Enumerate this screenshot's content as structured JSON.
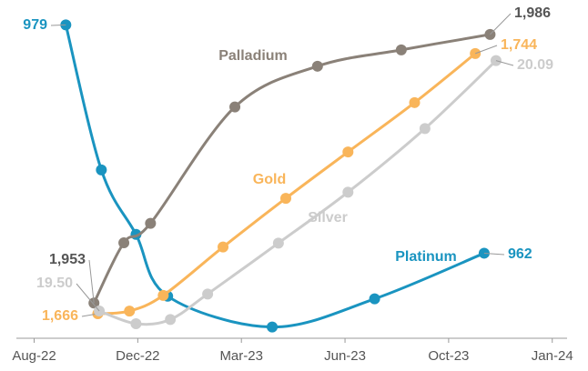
{
  "chart_data": {
    "type": "line",
    "xlim": [
      -0.6,
      18
    ],
    "xticks": [
      {
        "value": 0,
        "label": "Aug-22"
      },
      {
        "value": 3.5,
        "label": "Dec-22"
      },
      {
        "value": 7,
        "label": "Mar-23"
      },
      {
        "value": 10.5,
        "label": "Jun-23"
      },
      {
        "value": 14,
        "label": "Oct-23"
      },
      {
        "value": 17.5,
        "label": "Jan-24"
      }
    ],
    "series": [
      {
        "name": "Platinum",
        "color": "#1a94c0",
        "ylim": [
          955.8,
          979.5
        ],
        "x": [
          1.07,
          2.27,
          3.44,
          4.51,
          8.04,
          11.5,
          15.2
        ],
        "values": [
          979,
          968.2,
          963.4,
          958.8,
          956.5,
          958.6,
          962
        ],
        "value_labels": [
          "979",
          null,
          null,
          null,
          null,
          null,
          "962"
        ]
      },
      {
        "name": "Palladium",
        "color": "#8a8178",
        "ylim": [
          1948.9,
          1988.0
        ],
        "x": [
          2.02,
          3.03,
          3.93,
          6.78,
          9.57,
          12.4,
          15.4
        ],
        "values": [
          1953,
          1960.4,
          1962.8,
          1977.1,
          1982.1,
          1984.1,
          1986
        ],
        "value_labels": [
          "1,953",
          null,
          null,
          null,
          null,
          null,
          "1,986"
        ]
      },
      {
        "name": "Gold",
        "color": "#f9b55a",
        "ylim": [
          1659.2,
          1754.6
        ],
        "x": [
          2.15,
          3.22,
          4.36,
          6.38,
          8.5,
          10.6,
          12.85,
          14.9
        ],
        "values": [
          1666,
          1666.8,
          1671.5,
          1686,
          1700.6,
          1714.5,
          1729.3,
          1744
        ],
        "value_labels": [
          "1,666",
          null,
          null,
          null,
          null,
          null,
          null,
          "1,744"
        ]
      },
      {
        "name": "Silver",
        "color": "#cccccc",
        "ylim": [
          19.44,
          20.19
        ],
        "x": [
          2.2,
          3.44,
          4.6,
          5.86,
          8.25,
          10.6,
          13.2,
          15.6
        ],
        "values": [
          19.5,
          19.47,
          19.48,
          19.54,
          19.66,
          19.78,
          19.93,
          20.09
        ],
        "value_labels": [
          "19.50",
          null,
          null,
          null,
          null,
          null,
          null,
          "20.09"
        ]
      }
    ]
  }
}
